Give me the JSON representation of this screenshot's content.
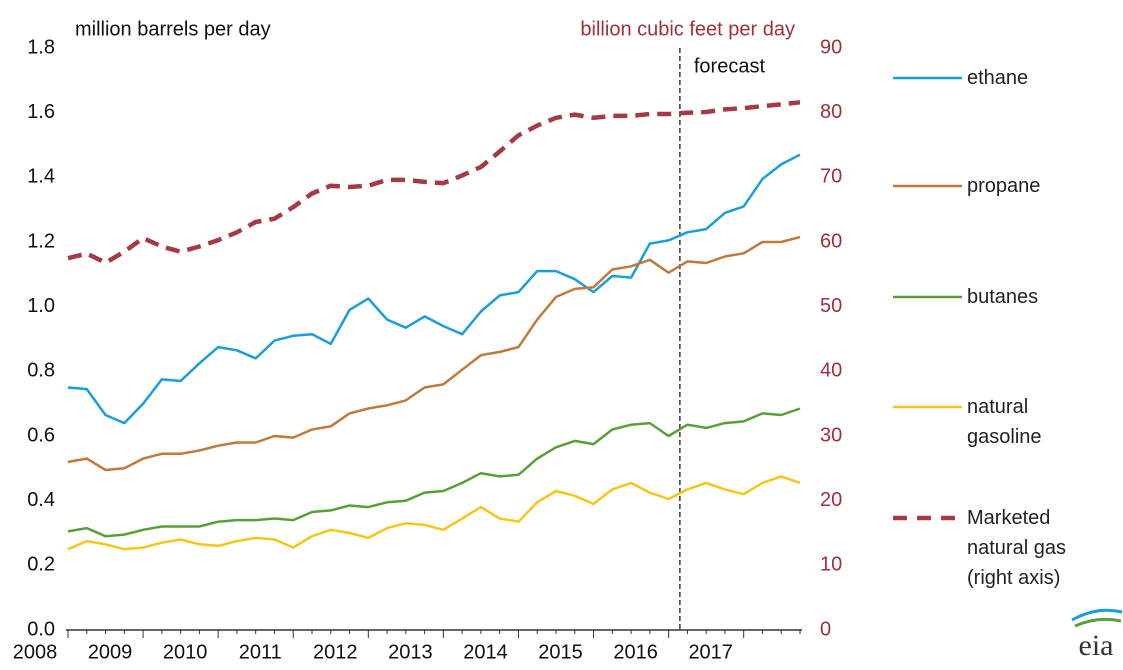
{
  "chart_data": {
    "type": "line",
    "y_label": "million barrels per day",
    "y2_label": "billion cubic feet per day",
    "categories": [
      "2008",
      null,
      null,
      null,
      "2009",
      null,
      null,
      null,
      "2010",
      null,
      null,
      null,
      "2011",
      null,
      null,
      null,
      "2012",
      null,
      null,
      null,
      "2013",
      null,
      null,
      null,
      "2014",
      null,
      null,
      null,
      "2015",
      null,
      null,
      null,
      "2016",
      null,
      null,
      null,
      "2017",
      null,
      null,
      null
    ],
    "ylim": [
      0,
      1.8
    ],
    "yticks": [
      {
        "value": 0,
        "label": "0.0"
      },
      0.2,
      0.4,
      0.6,
      0.8,
      {
        "value": 1,
        "label": "1.0"
      },
      1.2,
      1.4,
      1.6,
      1.8
    ],
    "y2lim": [
      0,
      90
    ],
    "y2ticks": [
      0,
      10,
      20,
      30,
      40,
      50,
      60,
      70,
      80,
      90
    ],
    "annotation": {
      "text": "forecast",
      "x": 32.6
    },
    "series": [
      {
        "name": "ethane",
        "color": "#1a9ed9",
        "values": [
          0.75,
          0.745,
          0.665,
          0.64,
          0.7,
          0.775,
          0.77,
          0.825,
          0.875,
          0.865,
          0.84,
          0.895,
          0.91,
          0.915,
          0.885,
          0.99,
          1.025,
          0.96,
          0.935,
          0.97,
          0.94,
          0.915,
          0.985,
          1.035,
          1.045,
          1.11,
          1.11,
          1.085,
          1.045,
          1.095,
          1.09,
          1.195,
          1.205,
          1.23,
          1.24,
          1.29,
          1.31,
          1.395,
          1.44,
          1.47
        ]
      },
      {
        "name": "propane",
        "color": "#c0793a",
        "values": [
          0.52,
          0.53,
          0.495,
          0.5,
          0.53,
          0.545,
          0.545,
          0.555,
          0.57,
          0.58,
          0.58,
          0.6,
          0.595,
          0.62,
          0.63,
          0.67,
          0.685,
          0.695,
          0.71,
          0.75,
          0.76,
          0.805,
          0.85,
          0.86,
          0.875,
          0.96,
          1.03,
          1.055,
          1.06,
          1.115,
          1.125,
          1.145,
          1.105,
          1.14,
          1.135,
          1.155,
          1.165,
          1.2,
          1.2,
          1.215
        ]
      },
      {
        "name": "butanes",
        "color": "#5a9e3a",
        "values": [
          0.305,
          0.315,
          0.29,
          0.295,
          0.31,
          0.32,
          0.32,
          0.32,
          0.335,
          0.34,
          0.34,
          0.345,
          0.34,
          0.365,
          0.37,
          0.385,
          0.38,
          0.395,
          0.4,
          0.425,
          0.43,
          0.455,
          0.485,
          0.475,
          0.48,
          0.53,
          0.565,
          0.585,
          0.575,
          0.62,
          0.635,
          0.64,
          0.6,
          0.635,
          0.625,
          0.64,
          0.645,
          0.67,
          0.665,
          0.685
        ]
      },
      {
        "name": "natural gasoline",
        "color": "#f5c518",
        "values": [
          0.25,
          0.275,
          0.265,
          0.25,
          0.255,
          0.27,
          0.28,
          0.265,
          0.26,
          0.275,
          0.285,
          0.28,
          0.255,
          0.29,
          0.31,
          0.3,
          0.285,
          0.315,
          0.33,
          0.325,
          0.31,
          0.345,
          0.38,
          0.345,
          0.335,
          0.395,
          0.43,
          0.415,
          0.39,
          0.435,
          0.455,
          0.425,
          0.405,
          0.435,
          0.455,
          0.435,
          0.42,
          0.455,
          0.475,
          0.455
        ]
      },
      {
        "name": "Marketed natural gas (right axis)",
        "color": "#a33a44",
        "axis": "y2",
        "dashed": true,
        "values": [
          57.5,
          58.2,
          56.8,
          58.5,
          60.6,
          59.3,
          58.5,
          59.3,
          60.3,
          61.5,
          63.1,
          63.6,
          65.4,
          67.5,
          68.7,
          68.5,
          68.7,
          69.6,
          69.6,
          69.3,
          69.1,
          70.3,
          71.6,
          74,
          76.5,
          78,
          79.2,
          79.7,
          79.2,
          79.5,
          79.5,
          79.8,
          79.8,
          80,
          80.1,
          80.5,
          80.7,
          81,
          81.3,
          81.6
        ]
      }
    ]
  }
}
